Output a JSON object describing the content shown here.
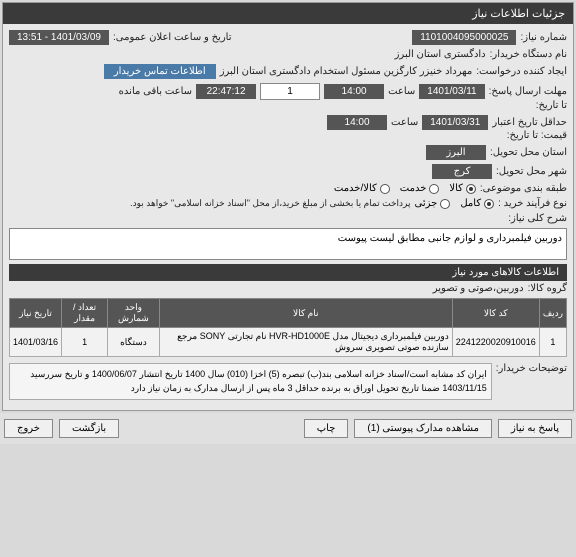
{
  "header": {
    "title": "جزئیات اطلاعات نیاز"
  },
  "fields": {
    "reqNumLabel": "شماره نیاز:",
    "reqNum": "1101004095000025",
    "announceTimeLabel": "تاریخ و ساعت اعلان عمومی:",
    "announceTime": "1401/03/09 - 13:51",
    "buyerOrgLabel": "نام دستگاه خریدار:",
    "buyerOrg": "دادگستری استان البرز",
    "creatorLabel": "ایجاد کننده درخواست:",
    "creator": "مهرداد خنیزر کارگزین مسئول استخدام دادگستری استان البرز",
    "contactBadge": "اطلاعات تماس خریدار",
    "respDeadlineLabel": "مهلت ارسال پاسخ:",
    "dateLbl": "تا تاریخ:",
    "respDate": "1401/03/11",
    "timeLbl": "ساعت",
    "respTime": "14:00",
    "one": "1",
    "remainLabel": "ساعت باقی مانده",
    "remainTime": "22:47:12",
    "priceValidLabel": "حداقل تاریخ اعتبار",
    "priceValidLabel2": "قیمت: تا تاریخ:",
    "priceDate": "1401/03/31",
    "priceTime": "14:00",
    "provLabel": "استان محل تحویل:",
    "prov": "البرز",
    "cityLabel": "شهر محل تحویل:",
    "city": "کرج",
    "catLabel": "طبقه بندی موضوعی:",
    "opt_goods": "کالا",
    "opt_service": "خدمت",
    "opt_goodsService": "کالا/خدمت",
    "buyTypeLabel": "نوع فرآیند خرید :",
    "opt_full": "کامل",
    "opt_partial": "جزئی",
    "buyTypeNote": "پرداخت تمام یا بخشی از مبلغ خرید،از محل \"اسناد خزانه اسلامی\" خواهد بود.",
    "descLabel": "شرح کلی نیاز:",
    "descText": "دوربین فیلمبرداری و لوازم جانبی مطابق لیست پیوست",
    "itemsHead": "اطلاعات کالاهای مورد نیاز",
    "groupLabel": "گروه کالا:",
    "groupVal": "دوربین،صوتی و تصویر",
    "buyerNotesLabel": "توضیحات خریدار:",
    "buyerNotes": "ایران کد مشابه است/اسناد خزانه اسلامی بند(ب) تبصره (5) اخزا (010) سال 1400 تاریخ انتشار 1400/06/07 و تاریخ سررسید 1403/11/15 ضمنا تاریخ تحویل اوراق به برنده حداقل 3 ماه پس از ارسال مدارک به زمان نیاز دارد"
  },
  "tableCols": [
    "ردیف",
    "کد کالا",
    "نام کالا",
    "واحد شمارش",
    "تعداد / مقدار",
    "تاریخ نیاز"
  ],
  "tableRows": [
    [
      "1",
      "2241220020910016",
      "دوربین فیلمبرداری دیجیتال مدل HVR-HD1000E نام تجارتی SONY مرجع سازنده صوتی تصویری سروش",
      "دستگاه",
      "1",
      "1401/03/16"
    ]
  ],
  "buttons": {
    "reply": "پاسخ به نیاز",
    "attach": "مشاهده مدارک پیوستی (1)",
    "print": "چاپ",
    "back": "بازگشت",
    "exit": "خروج"
  }
}
